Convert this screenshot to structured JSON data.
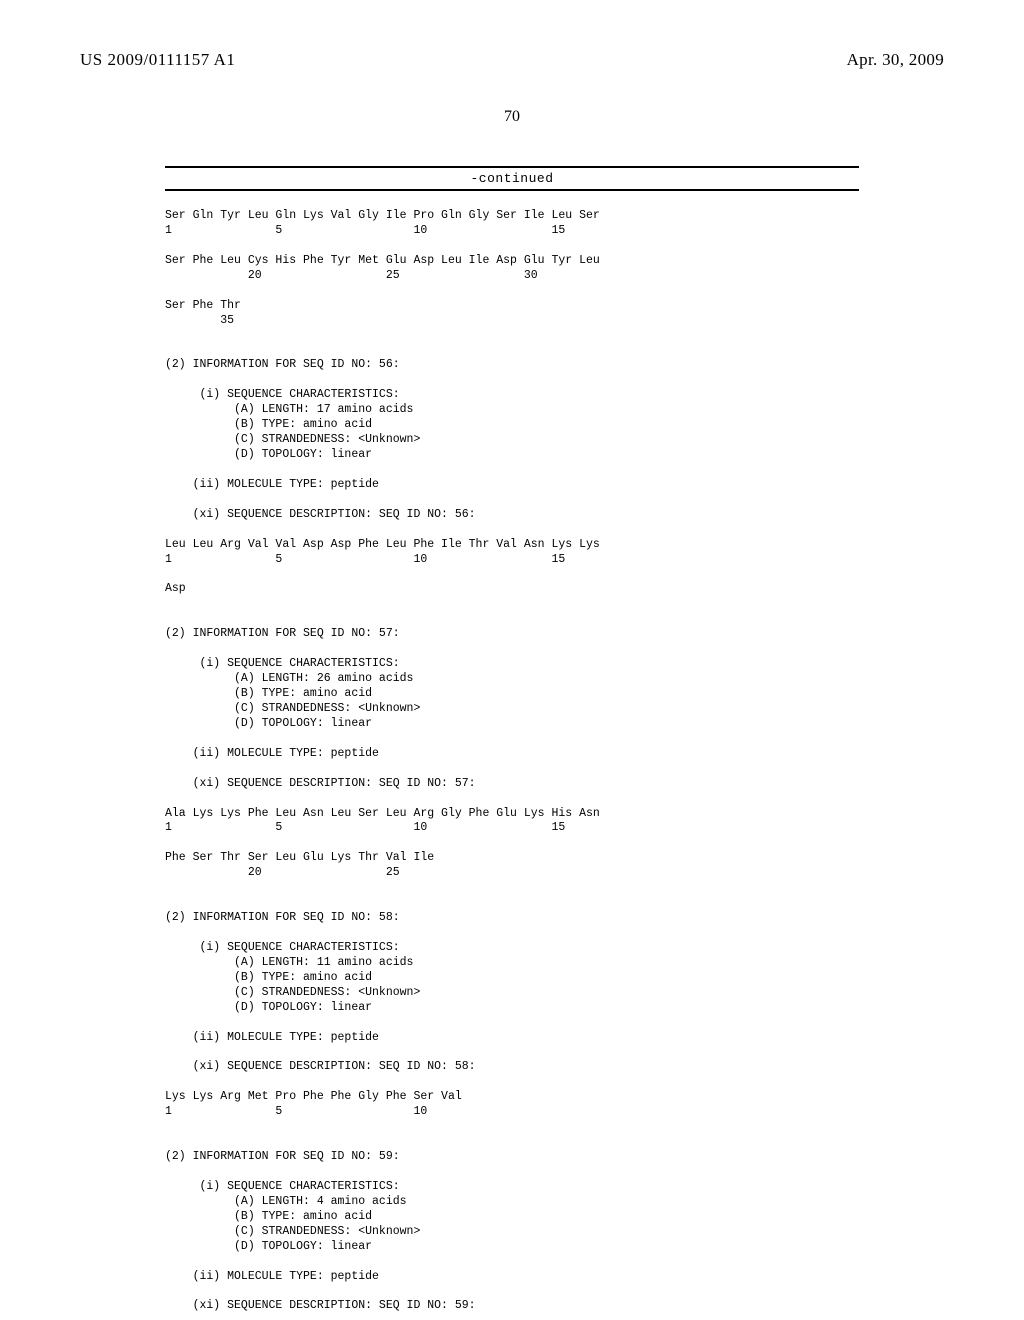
{
  "header": {
    "pub_number": "US 2009/0111157 A1",
    "pub_date": "Apr. 30, 2009"
  },
  "page_number": "70",
  "continued_label": "-continued",
  "sequence_text": "Ser Gln Tyr Leu Gln Lys Val Gly Ile Pro Gln Gly Ser Ile Leu Ser\n1               5                   10                  15\n\nSer Phe Leu Cys His Phe Tyr Met Glu Asp Leu Ile Asp Glu Tyr Leu\n            20                  25                  30\n\nSer Phe Thr\n        35\n\n\n(2) INFORMATION FOR SEQ ID NO: 56:\n\n     (i) SEQUENCE CHARACTERISTICS:\n          (A) LENGTH: 17 amino acids\n          (B) TYPE: amino acid\n          (C) STRANDEDNESS: <Unknown>\n          (D) TOPOLOGY: linear\n\n    (ii) MOLECULE TYPE: peptide\n\n    (xi) SEQUENCE DESCRIPTION: SEQ ID NO: 56:\n\nLeu Leu Arg Val Val Asp Asp Phe Leu Phe Ile Thr Val Asn Lys Lys\n1               5                   10                  15\n\nAsp\n\n\n(2) INFORMATION FOR SEQ ID NO: 57:\n\n     (i) SEQUENCE CHARACTERISTICS:\n          (A) LENGTH: 26 amino acids\n          (B) TYPE: amino acid\n          (C) STRANDEDNESS: <Unknown>\n          (D) TOPOLOGY: linear\n\n    (ii) MOLECULE TYPE: peptide\n\n    (xi) SEQUENCE DESCRIPTION: SEQ ID NO: 57:\n\nAla Lys Lys Phe Leu Asn Leu Ser Leu Arg Gly Phe Glu Lys His Asn\n1               5                   10                  15\n\nPhe Ser Thr Ser Leu Glu Lys Thr Val Ile\n            20                  25\n\n\n(2) INFORMATION FOR SEQ ID NO: 58:\n\n     (i) SEQUENCE CHARACTERISTICS:\n          (A) LENGTH: 11 amino acids\n          (B) TYPE: amino acid\n          (C) STRANDEDNESS: <Unknown>\n          (D) TOPOLOGY: linear\n\n    (ii) MOLECULE TYPE: peptide\n\n    (xi) SEQUENCE DESCRIPTION: SEQ ID NO: 58:\n\nLys Lys Arg Met Pro Phe Phe Gly Phe Ser Val\n1               5                   10\n\n\n(2) INFORMATION FOR SEQ ID NO: 59:\n\n     (i) SEQUENCE CHARACTERISTICS:\n          (A) LENGTH: 4 amino acids\n          (B) TYPE: amino acid\n          (C) STRANDEDNESS: <Unknown>\n          (D) TOPOLOGY: linear\n\n    (ii) MOLECULE TYPE: peptide\n\n    (xi) SEQUENCE DESCRIPTION: SEQ ID NO: 59:"
}
